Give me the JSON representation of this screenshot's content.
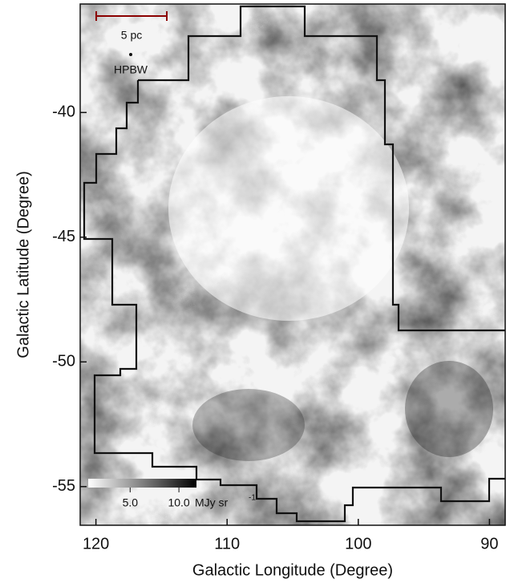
{
  "chart_data": {
    "type": "map",
    "xlabel": "Galactic Longitude (Degree)",
    "ylabel": "Galactic Latitude (Degree)",
    "xlim": [
      121.2,
      88.8
    ],
    "xticks": [
      120,
      110,
      100,
      90
    ],
    "ylim": [
      -56.55,
      -35.65
    ],
    "yticks": [
      -40,
      -45,
      -50,
      -55
    ],
    "scale_bar": "5 pc",
    "beam": "HPBW",
    "colorbar": {
      "lim": [
        0.7,
        11.8
      ],
      "ticks": [
        {
          "value": 5,
          "label": "5.0"
        },
        {
          "value": 10,
          "label": "10.0"
        }
      ],
      "unit": "MJy sr",
      "unit_exponent": "-1"
    }
  }
}
